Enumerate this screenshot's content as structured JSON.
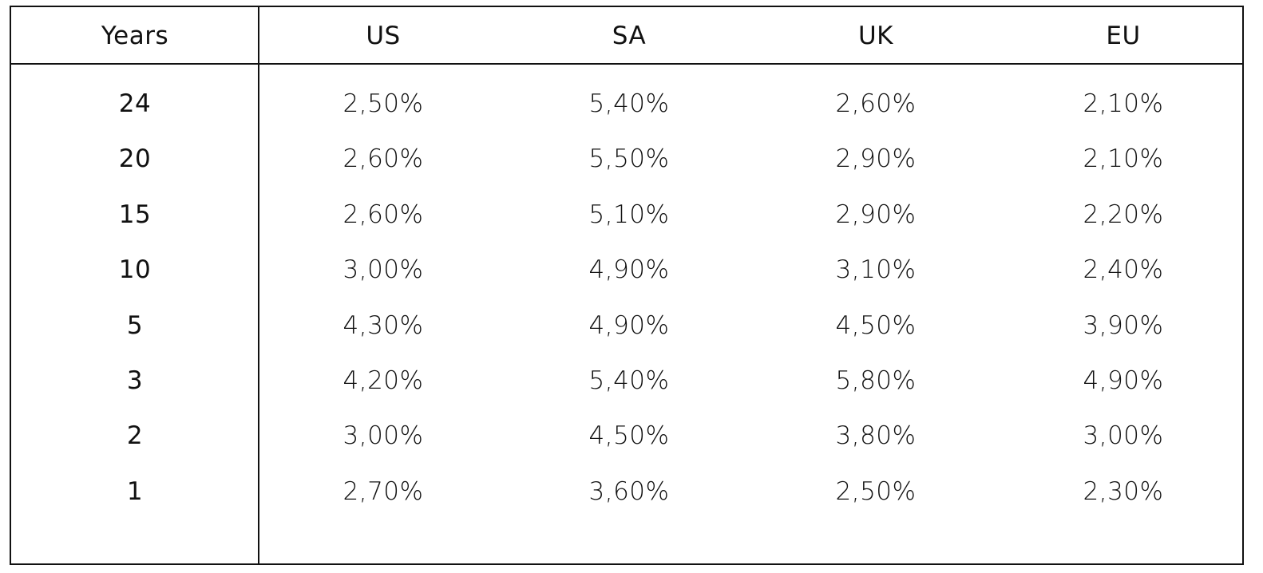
{
  "table": {
    "header": [
      "Years",
      "US",
      "SA",
      "UK",
      "EU"
    ],
    "rows": [
      [
        "24",
        "2,50%",
        "5,40%",
        "2,60%",
        "2,10%"
      ],
      [
        "20",
        "2,60%",
        "5,50%",
        "2,90%",
        "2,10%"
      ],
      [
        "15",
        "2,60%",
        "5,10%",
        "2,90%",
        "2,20%"
      ],
      [
        "10",
        "3,00%",
        "4,90%",
        "3,10%",
        "2,40%"
      ],
      [
        "5",
        "4,30%",
        "4,90%",
        "4,50%",
        "3,90%"
      ],
      [
        "3",
        "4,20%",
        "5,40%",
        "5,80%",
        "4,90%"
      ],
      [
        "2",
        "3,00%",
        "4,50%",
        "3,80%",
        "3,00%"
      ],
      [
        "1",
        "2,70%",
        "3,60%",
        "2,50%",
        "2,30%"
      ]
    ]
  }
}
